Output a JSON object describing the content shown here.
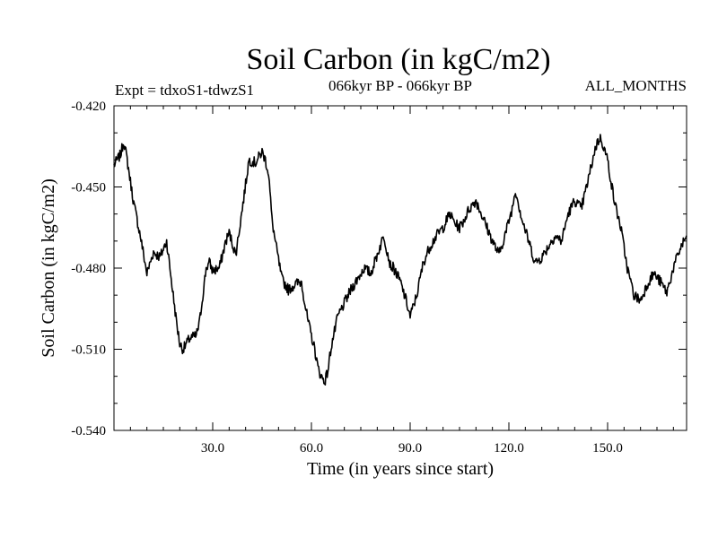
{
  "chart_data": {
    "type": "line",
    "title": "Soil Carbon (in kgC/m2)",
    "subtitle_left": "Expt = tdxoS1-tdwzS1",
    "subtitle_center": "066kyr BP - 066kyr BP",
    "subtitle_right": "ALL_MONTHS",
    "xlabel": "Time (in years since start)",
    "ylabel": "Soil Carbon (in kgC/m2)",
    "xlim": [
      0,
      174
    ],
    "ylim": [
      -0.54,
      -0.42
    ],
    "xticks": [
      30,
      60,
      90,
      120,
      150
    ],
    "xtick_labels": [
      "30.0",
      "60.0",
      "90.0",
      "120.0",
      "150.0"
    ],
    "yticks": [
      -0.42,
      -0.45,
      -0.48,
      -0.51,
      -0.54
    ],
    "ytick_labels": [
      "-0.420",
      "-0.450",
      "-0.480",
      "-0.510",
      "-0.540"
    ],
    "grid": false,
    "series": [
      {
        "name": "Soil Carbon",
        "color": "#000000",
        "x": [
          0,
          2,
          3,
          4,
          6,
          8,
          10,
          12,
          14,
          16,
          18,
          19,
          20,
          21,
          23,
          25,
          26,
          27,
          28,
          29,
          30,
          32,
          34,
          35,
          37,
          39,
          41,
          43,
          45,
          46,
          47,
          48,
          49,
          51,
          53,
          55,
          57,
          58,
          59,
          60,
          61,
          62,
          63,
          64,
          65,
          66,
          68,
          70,
          72,
          74,
          76,
          78,
          80,
          82,
          84,
          85,
          87,
          89,
          90,
          92,
          94,
          96,
          98,
          100,
          102,
          104,
          105,
          106,
          108,
          110,
          112,
          113,
          115,
          117,
          119,
          121,
          122,
          124,
          126,
          128,
          130,
          132,
          134,
          136,
          138,
          140,
          142,
          144,
          146,
          147,
          148,
          150,
          152,
          154,
          156,
          158,
          160,
          162,
          164,
          166,
          168,
          170,
          172,
          174
        ],
        "values": [
          -0.442,
          -0.438,
          -0.433,
          -0.44,
          -0.456,
          -0.468,
          -0.482,
          -0.474,
          -0.476,
          -0.47,
          -0.49,
          -0.5,
          -0.508,
          -0.51,
          -0.506,
          -0.505,
          -0.5,
          -0.49,
          -0.48,
          -0.478,
          -0.481,
          -0.48,
          -0.47,
          -0.467,
          -0.475,
          -0.458,
          -0.44,
          -0.441,
          -0.437,
          -0.44,
          -0.445,
          -0.462,
          -0.47,
          -0.484,
          -0.488,
          -0.486,
          -0.485,
          -0.493,
          -0.5,
          -0.505,
          -0.51,
          -0.517,
          -0.52,
          -0.522,
          -0.518,
          -0.509,
          -0.498,
          -0.493,
          -0.488,
          -0.484,
          -0.48,
          -0.482,
          -0.475,
          -0.468,
          -0.479,
          -0.48,
          -0.485,
          -0.493,
          -0.498,
          -0.49,
          -0.478,
          -0.472,
          -0.468,
          -0.465,
          -0.46,
          -0.464,
          -0.465,
          -0.463,
          -0.458,
          -0.455,
          -0.461,
          -0.464,
          -0.47,
          -0.475,
          -0.467,
          -0.458,
          -0.451,
          -0.462,
          -0.47,
          -0.478,
          -0.476,
          -0.472,
          -0.468,
          -0.47,
          -0.46,
          -0.455,
          -0.458,
          -0.448,
          -0.437,
          -0.433,
          -0.432,
          -0.44,
          -0.455,
          -0.465,
          -0.48,
          -0.49,
          -0.492,
          -0.486,
          -0.482,
          -0.485,
          -0.489,
          -0.48,
          -0.473,
          -0.468
        ]
      }
    ]
  }
}
